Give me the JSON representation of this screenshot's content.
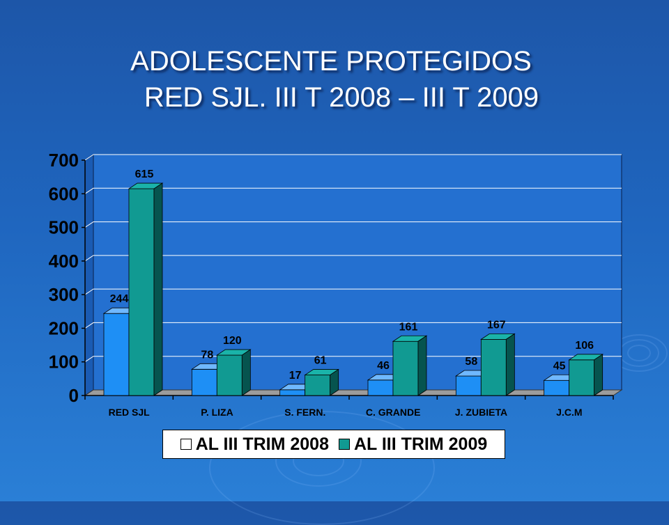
{
  "slide": {
    "title_line1": "ADOLESCENTE PROTEGIDOS",
    "title_line2": "RED SJL. III T 2008 – III T 2009"
  },
  "chart_data": {
    "type": "bar",
    "categories": [
      "RED SJL",
      "P. LIZA",
      "S. FERN.",
      "C. GRANDE",
      "J. ZUBIETA",
      "J.C.M"
    ],
    "series": [
      {
        "name": "AL III TRIM 2008",
        "values": [
          244,
          78,
          17,
          46,
          58,
          45
        ],
        "color": "#1e8ff5",
        "top_color": "#6fb8ff",
        "side_color": "#0f5fae"
      },
      {
        "name": "AL III TRIM 2009",
        "values": [
          615,
          120,
          61,
          161,
          167,
          106
        ],
        "color": "#119a92",
        "top_color": "#1ab3a9",
        "side_color": "#06544f"
      }
    ],
    "title": "",
    "xlabel": "",
    "ylabel": "",
    "ylim": [
      0,
      700
    ],
    "yticks": [
      0,
      100,
      200,
      300,
      400,
      500,
      600,
      700
    ],
    "grid": true,
    "legend_position": "bottom",
    "plot_background": "#2470d0",
    "grid_color": "#ffffff",
    "floor_color": "#9c9c9c"
  }
}
